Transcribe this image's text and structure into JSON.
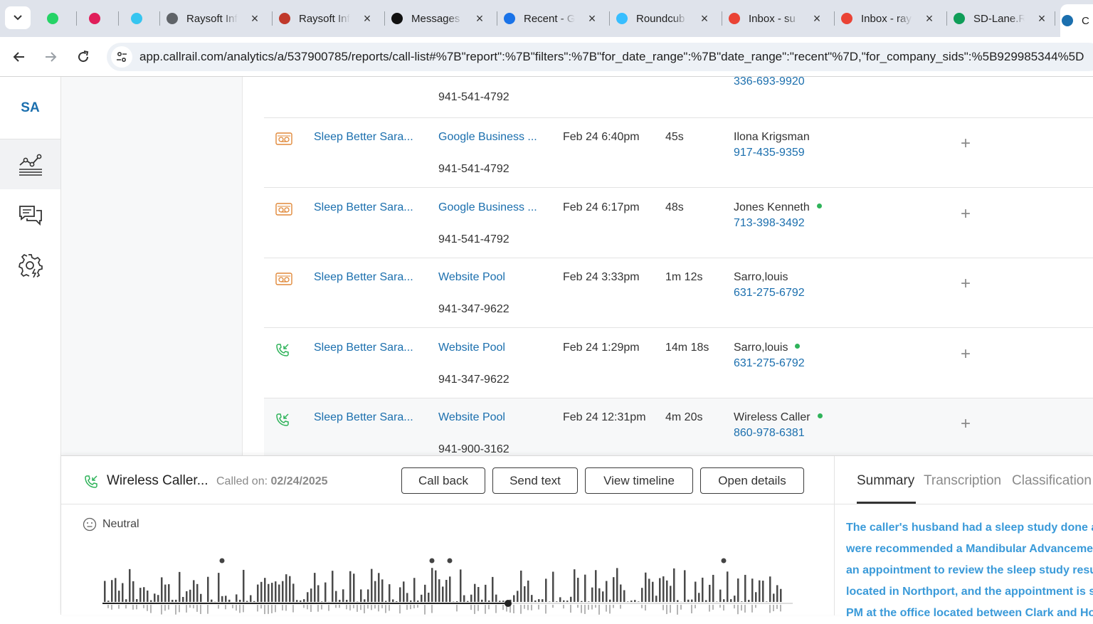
{
  "browser": {
    "tabs": [
      {
        "title": "",
        "icon": "whatsapp-icon",
        "color": "#25d366"
      },
      {
        "title": "",
        "icon": "slack-icon",
        "color": "#e01e5a"
      },
      {
        "title": "",
        "icon": "slack-icon",
        "color": "#36c5f0"
      },
      {
        "title": "Raysoft Inf",
        "icon": "globe-icon",
        "color": "#5f6368"
      },
      {
        "title": "Raysoft Inf",
        "icon": "raysoft-icon",
        "color": "#c0392b"
      },
      {
        "title": "Messages",
        "icon": "upwork-icon",
        "color": "#111111"
      },
      {
        "title": "Recent - G",
        "icon": "drive-icon",
        "color": "#1a73e8"
      },
      {
        "title": "Roundcub",
        "icon": "roundcube-icon",
        "color": "#37beff"
      },
      {
        "title": "Inbox - su",
        "icon": "gmail-icon",
        "color": "#ea4335"
      },
      {
        "title": "Inbox - ray",
        "icon": "gmail-icon",
        "color": "#ea4335"
      },
      {
        "title": "SD-Lane.R",
        "icon": "sheets-icon",
        "color": "#0f9d58"
      },
      {
        "title": "C",
        "icon": "callrail-icon",
        "color": "#1b6fae"
      }
    ],
    "url_domain": "app.callrail.com",
    "url_path": "/analytics/a/537900785/reports/call-list#%7B\"report\":%7B\"filters\":%7B\"for_date_range\":%7B\"date_range\":\"recent\"%7D,\"for_company_sids\":%5B929985344%5D"
  },
  "sidebar": {
    "avatar_initials": "SA",
    "items": [
      {
        "name": "analytics",
        "icon": "analytics-chart-icon",
        "active": true
      },
      {
        "name": "conversations",
        "icon": "chat-bubbles-icon",
        "active": false
      },
      {
        "name": "settings",
        "icon": "settings-gear-icon",
        "active": false
      }
    ]
  },
  "calls_table": {
    "partial_top": {
      "tracking_number": "941-541-4792",
      "customer_phone": "336-693-9920"
    },
    "rows": [
      {
        "type_icon": "voicemail-icon",
        "company": "Sleep Better Sara...",
        "source": "Google Business ...",
        "tracking_number": "941-541-4792",
        "date": "Feb 24 6:40pm",
        "duration": "45s",
        "customer_name": "Ilona Krigsman",
        "customer_phone": "917-435-9359",
        "new_caller": false
      },
      {
        "type_icon": "voicemail-icon",
        "company": "Sleep Better Sara...",
        "source": "Google Business ...",
        "tracking_number": "941-541-4792",
        "date": "Feb 24 6:17pm",
        "duration": "48s",
        "customer_name": "Jones Kenneth",
        "customer_phone": "713-398-3492",
        "new_caller": true
      },
      {
        "type_icon": "voicemail-icon",
        "company": "Sleep Better Sara...",
        "source": "Website Pool",
        "tracking_number": "941-347-9622",
        "date": "Feb 24 3:33pm",
        "duration": "1m 12s",
        "customer_name": "Sarro,louis",
        "customer_phone": "631-275-6792",
        "new_caller": false
      },
      {
        "type_icon": "inbound-call-icon",
        "company": "Sleep Better Sara...",
        "source": "Website Pool",
        "tracking_number": "941-347-9622",
        "date": "Feb 24 1:29pm",
        "duration": "14m 18s",
        "customer_name": "Sarro,louis",
        "customer_phone": "631-275-6792",
        "new_caller": true
      },
      {
        "type_icon": "inbound-call-icon",
        "company": "Sleep Better Sara...",
        "source": "Website Pool",
        "tracking_number": "941-900-3162",
        "date": "Feb 24 12:31pm",
        "duration": "4m 20s",
        "customer_name": "Wireless Caller",
        "customer_phone": "860-978-6381",
        "new_caller": true
      }
    ],
    "add_tag_symbol": "+",
    "colors": {
      "link": "#1b6fae",
      "new_caller_dot": "#2fb35a",
      "voicemail": "#e0893a",
      "inbound": "#2fb35a"
    }
  },
  "call_detail": {
    "caller_name": "Wireless Caller...",
    "called_on_label": "Called on:",
    "called_on_date": "02/24/2025",
    "buttons": [
      "Call back",
      "Send text",
      "View timeline",
      "Open details"
    ],
    "sentiment": "Neutral",
    "tabs": [
      "Summary",
      "Transcription",
      "Classification"
    ],
    "active_tab": "Summary",
    "summary_lines": [
      "The caller's husband had a sleep study done at",
      "were recommended a Mandibular Advancemer",
      "an appointment to review the sleep study resu",
      "located in Northport, and the appointment is s",
      "PM at the office located between Clark and Ho"
    ]
  }
}
